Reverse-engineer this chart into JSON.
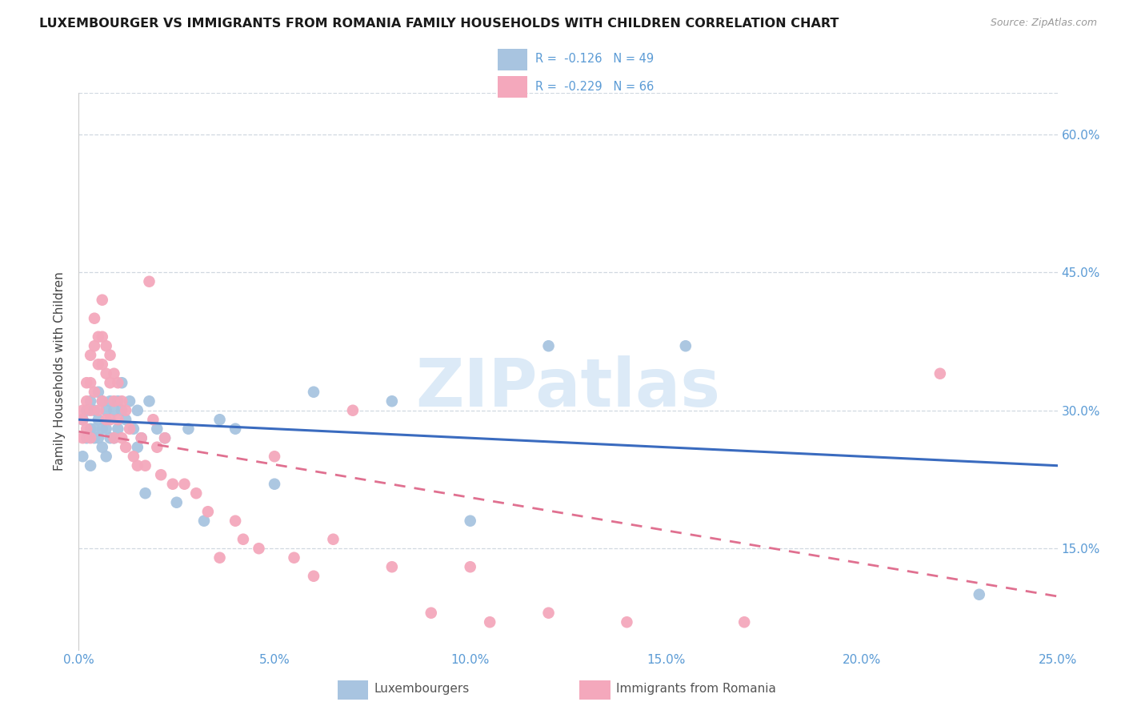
{
  "title": "LUXEMBOURGER VS IMMIGRANTS FROM ROMANIA FAMILY HOUSEHOLDS WITH CHILDREN CORRELATION CHART",
  "source": "Source: ZipAtlas.com",
  "ylabel": "Family Households with Children",
  "lux_color": "#a8c4e0",
  "rom_color": "#f4a8bc",
  "line_lux_color": "#3a6bbf",
  "line_rom_color": "#e07090",
  "watermark_text": "ZIPatlas",
  "title_color": "#1a1a1a",
  "axis_color": "#5b9bd5",
  "grid_color": "#d0d8e0",
  "xlim": [
    0.0,
    0.25
  ],
  "ylim": [
    0.04,
    0.645
  ],
  "x_ticks": [
    0.0,
    0.05,
    0.1,
    0.15,
    0.2,
    0.25
  ],
  "y_ticks": [
    0.15,
    0.3,
    0.45,
    0.6
  ],
  "lux_line_x0": 0.0,
  "lux_line_y0": 0.29,
  "lux_line_x1": 0.25,
  "lux_line_y1": 0.24,
  "rom_line_x0": 0.0,
  "rom_line_y0": 0.277,
  "rom_line_x1": 0.25,
  "rom_line_y1": 0.098,
  "lux_x": [
    0.001,
    0.001,
    0.002,
    0.002,
    0.003,
    0.003,
    0.003,
    0.004,
    0.004,
    0.004,
    0.005,
    0.005,
    0.005,
    0.006,
    0.006,
    0.006,
    0.007,
    0.007,
    0.007,
    0.008,
    0.008,
    0.009,
    0.009,
    0.01,
    0.01,
    0.011,
    0.011,
    0.012,
    0.013,
    0.014,
    0.015,
    0.015,
    0.016,
    0.017,
    0.018,
    0.02,
    0.022,
    0.025,
    0.028,
    0.032,
    0.036,
    0.04,
    0.05,
    0.06,
    0.08,
    0.1,
    0.12,
    0.155,
    0.23
  ],
  "lux_y": [
    0.29,
    0.25,
    0.3,
    0.27,
    0.31,
    0.28,
    0.24,
    0.3,
    0.28,
    0.27,
    0.32,
    0.29,
    0.27,
    0.31,
    0.28,
    0.26,
    0.3,
    0.28,
    0.25,
    0.31,
    0.27,
    0.3,
    0.27,
    0.31,
    0.28,
    0.33,
    0.3,
    0.29,
    0.31,
    0.28,
    0.3,
    0.26,
    0.27,
    0.21,
    0.31,
    0.28,
    0.27,
    0.2,
    0.28,
    0.18,
    0.29,
    0.28,
    0.22,
    0.32,
    0.31,
    0.18,
    0.37,
    0.37,
    0.1
  ],
  "rom_x": [
    0.001,
    0.001,
    0.001,
    0.002,
    0.002,
    0.002,
    0.003,
    0.003,
    0.003,
    0.003,
    0.004,
    0.004,
    0.004,
    0.005,
    0.005,
    0.005,
    0.006,
    0.006,
    0.006,
    0.006,
    0.007,
    0.007,
    0.007,
    0.008,
    0.008,
    0.008,
    0.009,
    0.009,
    0.009,
    0.01,
    0.01,
    0.011,
    0.011,
    0.012,
    0.012,
    0.013,
    0.014,
    0.015,
    0.016,
    0.017,
    0.018,
    0.019,
    0.02,
    0.021,
    0.022,
    0.024,
    0.027,
    0.03,
    0.033,
    0.036,
    0.04,
    0.042,
    0.046,
    0.05,
    0.055,
    0.06,
    0.065,
    0.07,
    0.08,
    0.09,
    0.1,
    0.105,
    0.12,
    0.14,
    0.17,
    0.22
  ],
  "rom_y": [
    0.3,
    0.29,
    0.27,
    0.33,
    0.31,
    0.28,
    0.36,
    0.33,
    0.3,
    0.27,
    0.4,
    0.37,
    0.32,
    0.38,
    0.35,
    0.3,
    0.42,
    0.38,
    0.35,
    0.31,
    0.37,
    0.34,
    0.29,
    0.36,
    0.33,
    0.29,
    0.34,
    0.31,
    0.27,
    0.33,
    0.29,
    0.31,
    0.27,
    0.3,
    0.26,
    0.28,
    0.25,
    0.24,
    0.27,
    0.24,
    0.44,
    0.29,
    0.26,
    0.23,
    0.27,
    0.22,
    0.22,
    0.21,
    0.19,
    0.14,
    0.18,
    0.16,
    0.15,
    0.25,
    0.14,
    0.12,
    0.16,
    0.3,
    0.13,
    0.08,
    0.13,
    0.07,
    0.08,
    0.07,
    0.07,
    0.34
  ]
}
